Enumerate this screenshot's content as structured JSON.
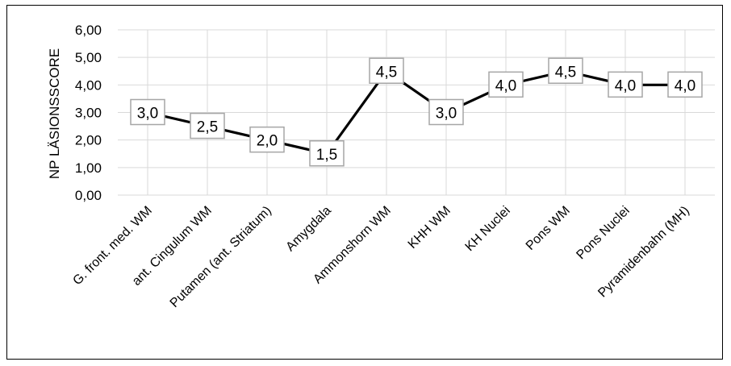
{
  "chart_data": {
    "type": "line",
    "title": "",
    "xlabel": "",
    "ylabel": "NP LÄSIONSSCORE",
    "categories": [
      "G. front. med. WM",
      "ant. Cingulum WM",
      "Putamen (ant. Striatum)",
      "Amygdala",
      "Ammonshorn WM",
      "KHH WM",
      "KH Nuclei",
      "Pons WM",
      "Pons Nuclei",
      "Pyramidenbahn (MH)"
    ],
    "values": [
      3.0,
      2.5,
      2.0,
      1.5,
      4.5,
      3.0,
      4.0,
      4.5,
      4.0,
      4.0
    ],
    "value_labels": [
      "3,0",
      "2,5",
      "2,0",
      "1,5",
      "4,5",
      "3,0",
      "4,0",
      "4,5",
      "4,0",
      "4,0"
    ],
    "yticks": [
      0,
      1,
      2,
      3,
      4,
      5,
      6
    ],
    "ytick_labels": [
      "0,00",
      "1,00",
      "2,00",
      "3,00",
      "4,00",
      "5,00",
      "6,00"
    ],
    "ylim": [
      0,
      6
    ],
    "grid": "both",
    "legend": "none",
    "colors": {
      "line": "#000000",
      "grid": "#d9d9d9",
      "label_border": "#a6a6a6"
    }
  }
}
